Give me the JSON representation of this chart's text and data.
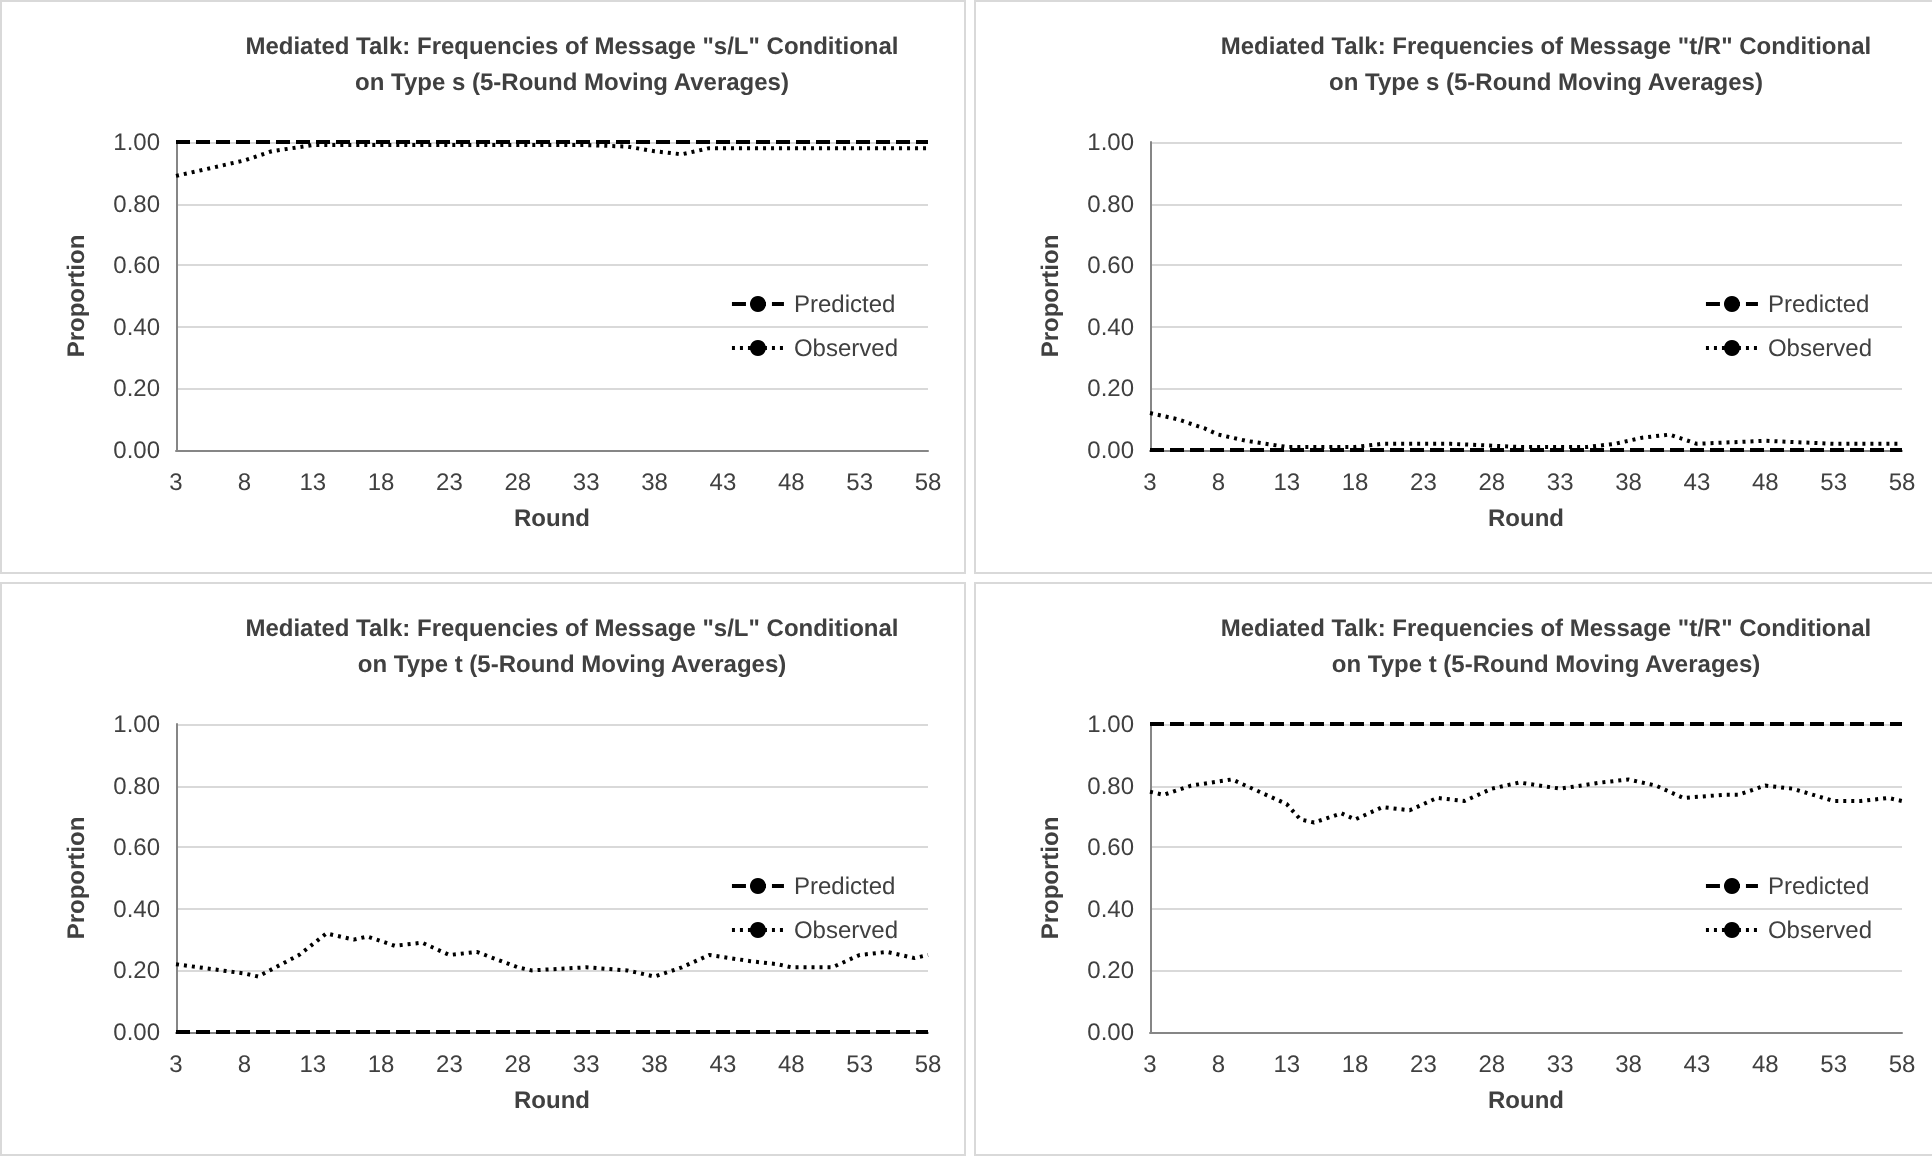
{
  "chart_data": [
    {
      "type": "line",
      "title": "Mediated Talk: Frequencies of Message \"s/L\" Conditional\non Type s (5-Round Moving Averages)",
      "xlabel": "Round",
      "ylabel": "Proportion",
      "xlim": [
        3,
        58
      ],
      "xticks": [
        3,
        8,
        13,
        18,
        23,
        28,
        33,
        38,
        43,
        48,
        53,
        58
      ],
      "ylim": [
        0,
        1
      ],
      "yticks": [
        {
          "value": 0,
          "label": "0.00"
        },
        {
          "value": 0.2,
          "label": "0.20"
        },
        {
          "value": 0.4,
          "label": "0.40"
        },
        {
          "value": 0.6,
          "label": "0.60"
        },
        {
          "value": 0.8,
          "label": "0.80"
        },
        {
          "value": 1,
          "label": "1.00"
        }
      ],
      "grid": "y",
      "legend": "right",
      "marker": "none",
      "series": [
        {
          "name": "Predicted",
          "color": "#000000",
          "line_style": "dashed",
          "x": [
            3,
            58
          ],
          "values": [
            1,
            1
          ]
        },
        {
          "name": "Observed",
          "color": "#000000",
          "line_style": "dotted",
          "x": [
            3,
            5,
            8,
            10,
            13,
            18,
            23,
            28,
            33,
            36,
            38,
            40,
            42,
            45,
            50,
            55,
            58
          ],
          "values": [
            0.89,
            0.91,
            0.94,
            0.97,
            0.99,
            0.99,
            0.99,
            0.99,
            0.99,
            0.985,
            0.97,
            0.96,
            0.98,
            0.98,
            0.98,
            0.98,
            0.98
          ]
        }
      ]
    },
    {
      "type": "line",
      "title": "Mediated Talk: Frequencies of Message \"t/R\" Conditional\non Type s (5-Round Moving Averages)",
      "xlabel": "Round",
      "ylabel": "Proportion",
      "xlim": [
        3,
        58
      ],
      "xticks": [
        3,
        8,
        13,
        18,
        23,
        28,
        33,
        38,
        43,
        48,
        53,
        58
      ],
      "ylim": [
        0,
        1
      ],
      "yticks": [
        {
          "value": 0,
          "label": "0.00"
        },
        {
          "value": 0.2,
          "label": "0.20"
        },
        {
          "value": 0.4,
          "label": "0.40"
        },
        {
          "value": 0.6,
          "label": "0.60"
        },
        {
          "value": 0.8,
          "label": "0.80"
        },
        {
          "value": 1,
          "label": "1.00"
        }
      ],
      "grid": "y",
      "legend": "right",
      "marker": "none",
      "series": [
        {
          "name": "Predicted",
          "color": "#000000",
          "line_style": "dashed",
          "x": [
            3,
            58
          ],
          "values": [
            0,
            0
          ]
        },
        {
          "name": "Observed",
          "color": "#000000",
          "line_style": "dotted",
          "x": [
            3,
            5,
            7,
            8,
            10,
            13,
            18,
            20,
            25,
            30,
            35,
            37,
            39,
            41,
            43,
            48,
            53,
            58
          ],
          "values": [
            0.12,
            0.1,
            0.07,
            0.05,
            0.03,
            0.01,
            0.01,
            0.02,
            0.02,
            0.01,
            0.01,
            0.02,
            0.04,
            0.05,
            0.02,
            0.03,
            0.02,
            0.02
          ]
        }
      ]
    },
    {
      "type": "line",
      "title": "Mediated Talk: Frequencies of Message \"s/L\" Conditional\non Type t (5-Round Moving Averages)",
      "xlabel": "Round",
      "ylabel": "Proportion",
      "xlim": [
        3,
        58
      ],
      "xticks": [
        3,
        8,
        13,
        18,
        23,
        28,
        33,
        38,
        43,
        48,
        53,
        58
      ],
      "ylim": [
        0,
        1
      ],
      "yticks": [
        {
          "value": 0,
          "label": "0.00"
        },
        {
          "value": 0.2,
          "label": "0.20"
        },
        {
          "value": 0.4,
          "label": "0.40"
        },
        {
          "value": 0.6,
          "label": "0.60"
        },
        {
          "value": 0.8,
          "label": "0.80"
        },
        {
          "value": 1,
          "label": "1.00"
        }
      ],
      "grid": "y",
      "legend": "right",
      "marker": "none",
      "series": [
        {
          "name": "Predicted",
          "color": "#000000",
          "line_style": "dashed",
          "x": [
            3,
            58
          ],
          "values": [
            0,
            0
          ]
        },
        {
          "name": "Observed",
          "color": "#000000",
          "line_style": "dotted",
          "x": [
            3,
            8,
            9,
            12,
            14,
            16,
            17,
            19,
            21,
            23,
            25,
            28,
            29,
            33,
            36,
            38,
            40,
            42,
            45,
            47,
            48,
            51,
            53,
            55,
            57,
            58
          ],
          "values": [
            0.22,
            0.19,
            0.18,
            0.25,
            0.32,
            0.3,
            0.31,
            0.28,
            0.29,
            0.25,
            0.26,
            0.21,
            0.2,
            0.21,
            0.2,
            0.18,
            0.21,
            0.25,
            0.23,
            0.22,
            0.21,
            0.21,
            0.25,
            0.26,
            0.24,
            0.25
          ]
        }
      ]
    },
    {
      "type": "line",
      "title": "Mediated Talk: Frequencies of Message \"t/R\" Conditional\non Type t (5-Round Moving Averages)",
      "xlabel": "Round",
      "ylabel": "Proportion",
      "xlim": [
        3,
        58
      ],
      "xticks": [
        3,
        8,
        13,
        18,
        23,
        28,
        33,
        38,
        43,
        48,
        53,
        58
      ],
      "ylim": [
        0,
        1
      ],
      "yticks": [
        {
          "value": 0,
          "label": "0.00"
        },
        {
          "value": 0.2,
          "label": "0.20"
        },
        {
          "value": 0.4,
          "label": "0.40"
        },
        {
          "value": 0.6,
          "label": "0.60"
        },
        {
          "value": 0.8,
          "label": "0.80"
        },
        {
          "value": 1,
          "label": "1.00"
        }
      ],
      "grid": "y",
      "legend": "right",
      "marker": "none",
      "series": [
        {
          "name": "Predicted",
          "color": "#000000",
          "line_style": "dashed",
          "x": [
            3,
            58
          ],
          "values": [
            1,
            1
          ]
        },
        {
          "name": "Observed",
          "color": "#000000",
          "line_style": "dotted",
          "x": [
            3,
            4,
            6,
            9,
            11,
            13,
            14,
            15,
            17,
            18,
            20,
            22,
            24,
            26,
            28,
            30,
            33,
            36,
            38,
            40,
            42,
            45,
            46,
            48,
            50,
            53,
            55,
            57,
            58
          ],
          "values": [
            0.78,
            0.77,
            0.8,
            0.82,
            0.78,
            0.74,
            0.69,
            0.68,
            0.71,
            0.69,
            0.73,
            0.72,
            0.76,
            0.75,
            0.79,
            0.81,
            0.79,
            0.81,
            0.82,
            0.8,
            0.76,
            0.77,
            0.77,
            0.8,
            0.79,
            0.75,
            0.75,
            0.76,
            0.75
          ]
        }
      ]
    }
  ]
}
